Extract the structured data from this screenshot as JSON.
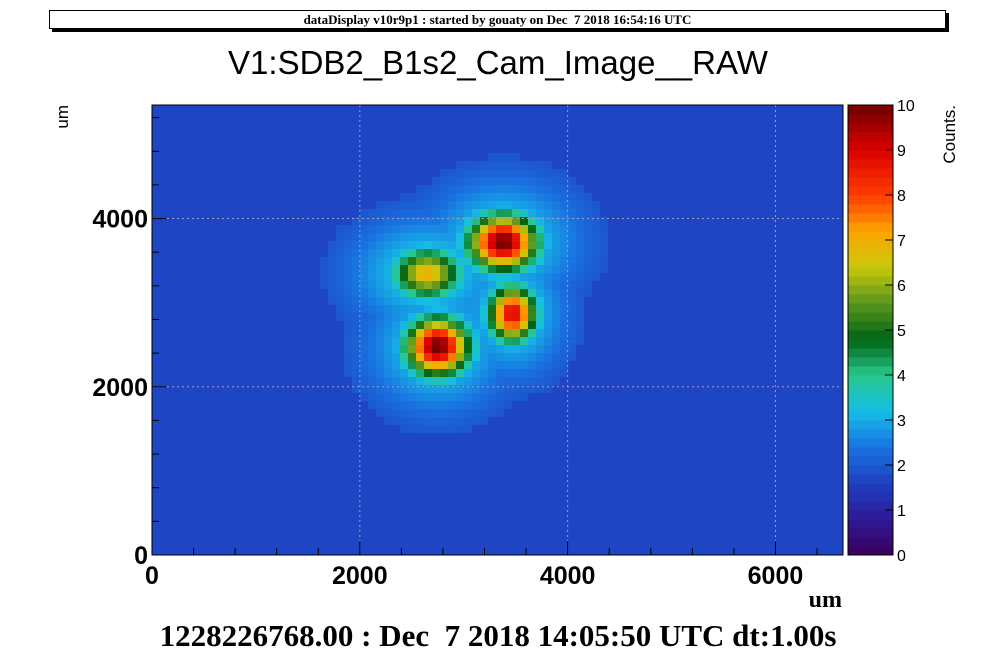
{
  "header": {
    "text": "dataDisplay v10r9p1 : started by gouaty on Dec  7 2018 16:54:16 UTC"
  },
  "footer": {
    "text": "1228226768.00 : Dec  7 2018 14:05:50 UTC dt:1.00s"
  },
  "colors": {
    "background_bin": "#1f3fbf",
    "grid": "#a0a0c0"
  },
  "chart_data": {
    "type": "heatmap",
    "title": "V1:SDB2_B1s2_Cam_Image__RAW",
    "xlabel": "um",
    "ylabel": "um",
    "zlabel": "Counts.",
    "xlim": [
      0,
      6650
    ],
    "ylim": [
      0,
      5350
    ],
    "zlim": [
      0,
      10
    ],
    "xticks": [
      0,
      2000,
      4000,
      6000
    ],
    "xtick_labels": [
      "0",
      "2000",
      "4000",
      "6000"
    ],
    "yticks": [
      0,
      2000,
      4000
    ],
    "ytick_labels": [
      "0",
      "2000",
      "4000"
    ],
    "zticks": [
      0,
      1,
      2,
      3,
      4,
      5,
      6,
      7,
      8,
      9,
      10
    ],
    "ztick_labels": [
      "0",
      "1",
      "2",
      "3",
      "4",
      "5",
      "6",
      "7",
      "8",
      "9",
      "10"
    ],
    "background_level": 1.7,
    "grid": true,
    "legend": "colorbar right",
    "spots": [
      {
        "x": 2750,
        "y": 2480,
        "peak": 10,
        "sx": 210,
        "sy": 240
      },
      {
        "x": 3380,
        "y": 3720,
        "peak": 10,
        "sx": 230,
        "sy": 230
      },
      {
        "x": 3470,
        "y": 2870,
        "peak": 9,
        "sx": 160,
        "sy": 230
      },
      {
        "x": 2650,
        "y": 3350,
        "peak": 7,
        "sx": 230,
        "sy": 210
      }
    ]
  }
}
